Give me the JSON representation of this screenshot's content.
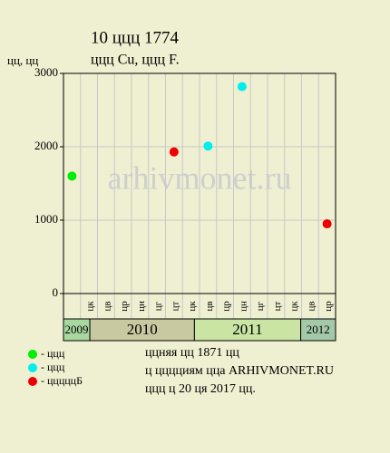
{
  "chart_data": {
    "type": "scatter",
    "title": "10 ццц 1774",
    "subtitle": "ццц Cu, ццц F.",
    "y_label": "цц, цц",
    "watermark": "arhivmonet.ru",
    "categories": [
      null,
      "цк",
      "цв",
      "цр",
      "цн",
      "цг",
      "цт",
      "цк",
      "цв",
      "цр",
      "цн",
      "цг",
      "цт",
      "цк",
      "цв",
      "цр"
    ],
    "years": [
      "2009",
      "2010",
      "2011",
      "2012"
    ],
    "series": [
      {
        "name": "- ццц",
        "color": "#00ee00",
        "values": [
          1600,
          null,
          null,
          null,
          null,
          null,
          null,
          null,
          null,
          null,
          null,
          null,
          null,
          null,
          null,
          null
        ]
      },
      {
        "name": "- ццц",
        "color": "#00eeee",
        "values": [
          null,
          null,
          null,
          null,
          null,
          null,
          null,
          null,
          2010,
          null,
          2820,
          null,
          null,
          null,
          null,
          null
        ]
      },
      {
        "name": "- цццццБ",
        "color": "#ee0000",
        "values": [
          null,
          null,
          null,
          null,
          null,
          null,
          1930,
          null,
          null,
          null,
          null,
          null,
          null,
          null,
          null,
          950
        ]
      }
    ],
    "ylim": [
      0,
      3000
    ],
    "yticks": [
      0,
      1000,
      2000,
      3000
    ],
    "grid": true,
    "notes": [
      "ццняя цц 1871 цц",
      "ц цццциям цца ARHIVMONET.RU",
      "ццц ц 20 ця 2017 цц."
    ]
  }
}
